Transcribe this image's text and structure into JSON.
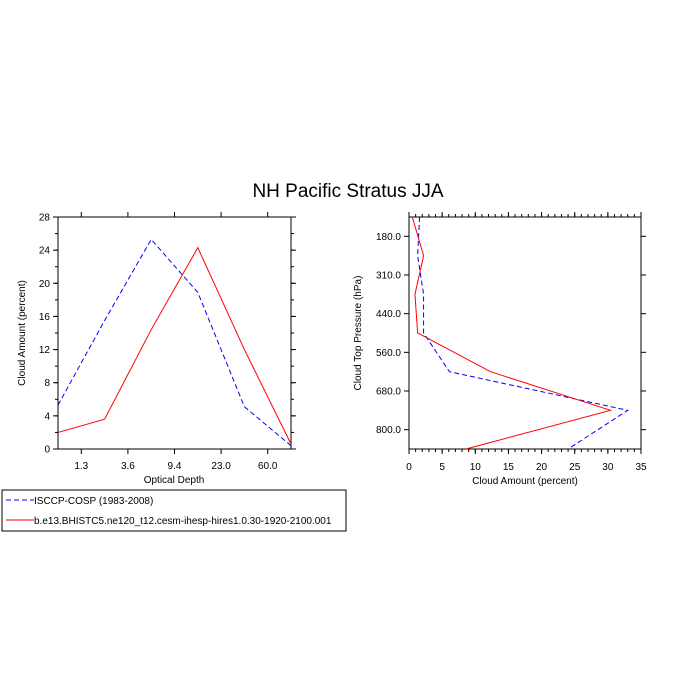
{
  "figure": {
    "title": "NH Pacific Stratus JJA"
  },
  "chart_data": [
    {
      "type": "line",
      "xlabel": "Optical Depth",
      "ylabel": "Cloud Amount (percent)",
      "x_tick_labels": [
        "1.3",
        "3.6",
        "9.4",
        "23.0",
        "60.0"
      ],
      "y_ticks": [
        0,
        4,
        8,
        12,
        16,
        20,
        24,
        28
      ],
      "ylim": [
        0,
        28
      ],
      "grid": false,
      "series": [
        {
          "name": "ISCCP-COSP (1983-2008)",
          "color": "#0000ff",
          "dash": "dashed",
          "values": [
            5.3,
            15.5,
            25.3,
            18.9,
            5.1,
            0.4
          ]
        },
        {
          "name": "b.e13.BHISTC5.ne120_t12.cesm-ihesp-hires1.0.30-1920-2100.001",
          "color": "#ff0000",
          "dash": "solid",
          "values": [
            2.0,
            3.6,
            14.4,
            24.3,
            12.0,
            0.6
          ]
        }
      ]
    },
    {
      "type": "line",
      "xlabel": "Cloud Amount (percent)",
      "ylabel": "Cloud Top Pressure (hPa)",
      "x_ticks": [
        0,
        5,
        10,
        15,
        20,
        25,
        30,
        35
      ],
      "xlim": [
        0,
        35
      ],
      "y_tick_labels": [
        "180.0",
        "310.0",
        "440.0",
        "560.0",
        "680.0",
        "800.0"
      ],
      "y_inverted": true,
      "grid": false,
      "series": [
        {
          "name": "ISCCP-COSP (1983-2008)",
          "color": "#0000ff",
          "dash": "dashed",
          "values": [
            1.6,
            1.3,
            2.2,
            2.2,
            6.1,
            33.0,
            24.0
          ]
        },
        {
          "name": "b.e13.BHISTC5.ne120_t12.cesm-ihesp-hires1.0.30-1920-2100.001",
          "color": "#ff0000",
          "dash": "solid",
          "values": [
            0.5,
            2.2,
            0.9,
            1.3,
            12.3,
            30.4,
            8.6
          ]
        }
      ]
    }
  ],
  "legend": {
    "placement": "bottom-left",
    "entries": [
      {
        "label": "ISCCP-COSP (1983-2008)",
        "color": "#0000ff",
        "dash": "dashed"
      },
      {
        "label": "b.e13.BHISTC5.ne120_t12.cesm-ihesp-hires1.0.30-1920-2100.001",
        "color": "#ff0000",
        "dash": "solid"
      }
    ]
  }
}
